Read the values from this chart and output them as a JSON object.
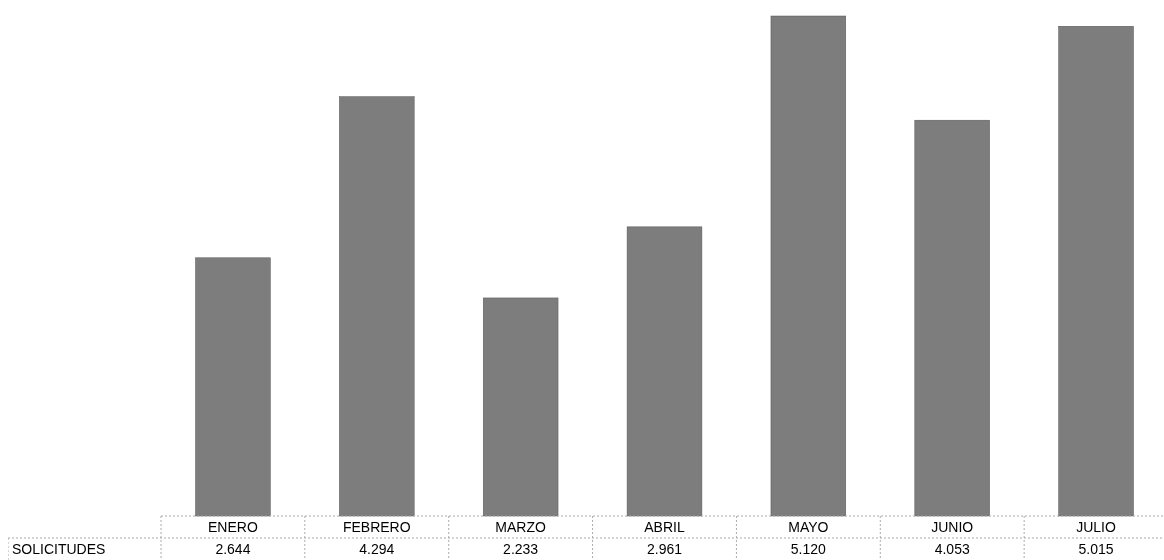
{
  "chart_data": {
    "type": "bar",
    "categories": [
      "ENERO",
      "FEBRERO",
      "MARZO",
      "ABRIL",
      "MAYO",
      "JUNIO",
      "JULIO"
    ],
    "series": [
      {
        "name": "SOLICITUDES",
        "color": "#7d7d7d",
        "values": [
          2644,
          4294,
          2233,
          2961,
          5120,
          4053,
          5015
        ],
        "value_labels": [
          "2.644",
          "4.294",
          "2.233",
          "2.961",
          "5.120",
          "4.053",
          "5.015"
        ]
      }
    ]
  }
}
